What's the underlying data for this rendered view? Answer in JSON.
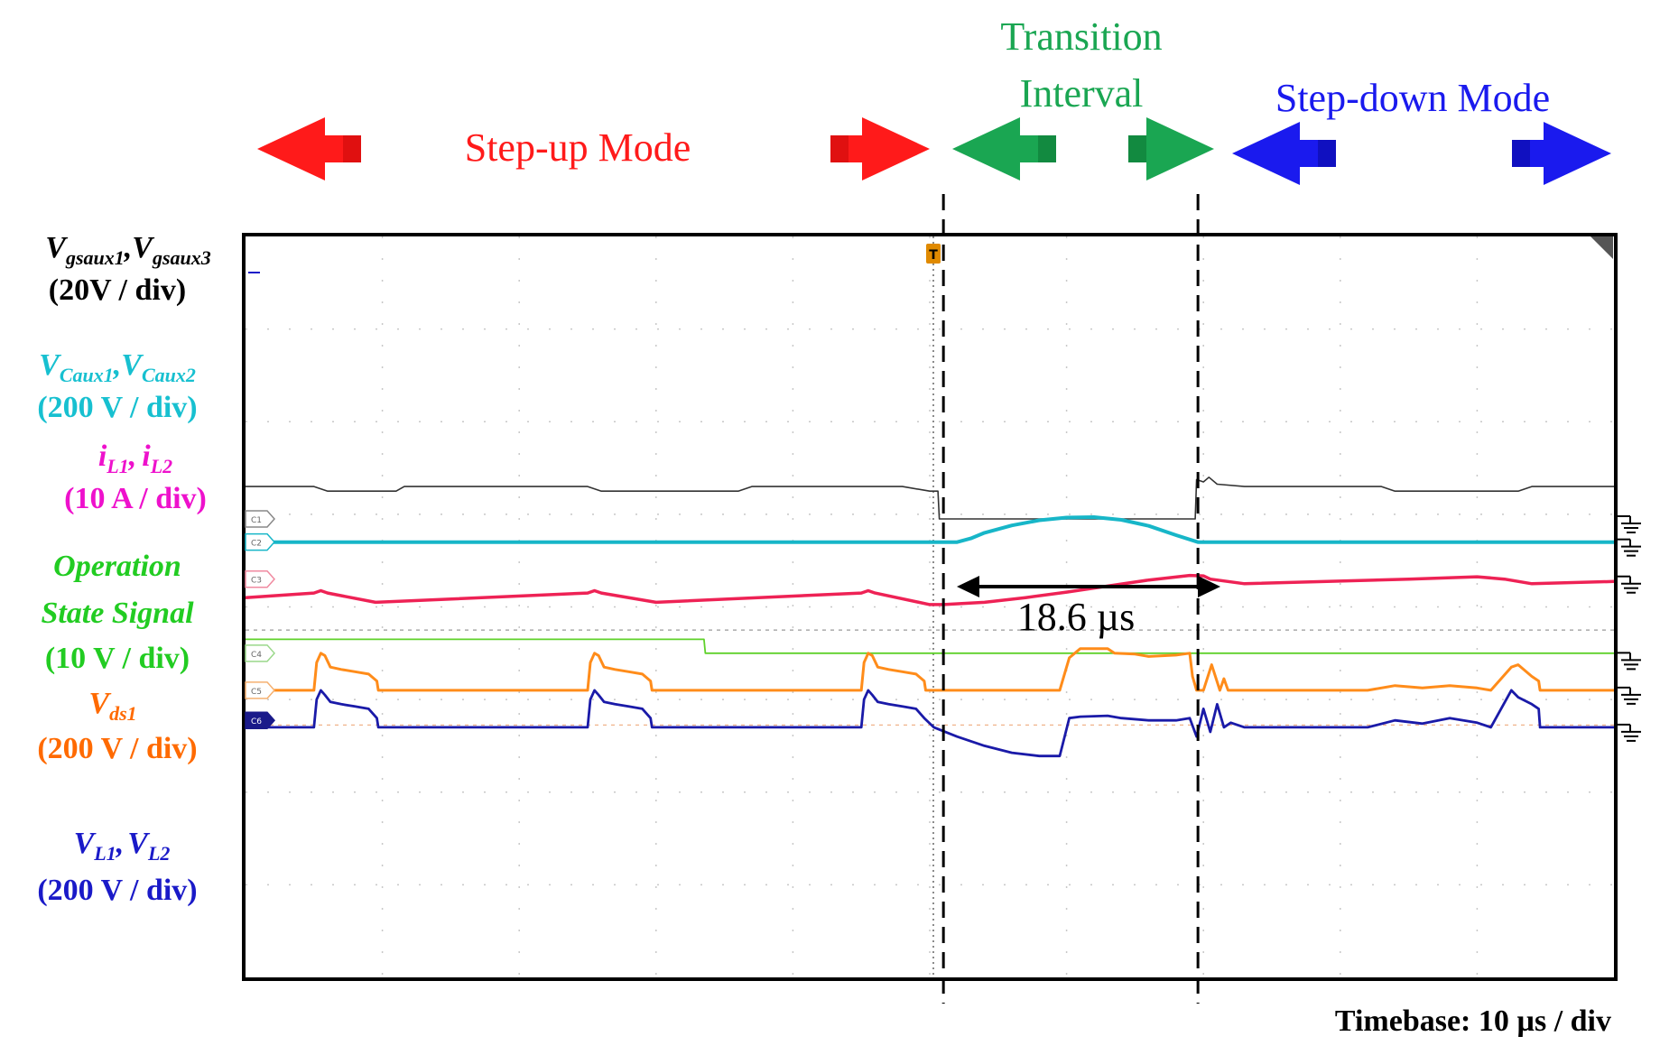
{
  "colors": {
    "stepup": "#ff1a1a",
    "transition": "#1aa652",
    "stepdown": "#1a1aee",
    "ch1": "#333333",
    "ch2": "#17b6c8",
    "ch3": "#ee2255",
    "ch_state": "#5fd12a",
    "ch5": "#ff8c1a",
    "ch6": "#1a1aa8",
    "label_ch2": "#17c0d0",
    "label_ch3": "#ee11cc",
    "label_state": "#22cc22",
    "label_ch5": "#ff6a00",
    "label_ch6": "#1a1ac8"
  },
  "modes": {
    "stepup": "Step-up Mode",
    "transition_line1": "Transition",
    "transition_line2": "Interval",
    "stepdown": "Step-down Mode"
  },
  "channel_labels": {
    "ch1": {
      "name_a_main": "V",
      "name_a_sub": "gsaux1",
      "separator": ",",
      "name_b_main": "V",
      "name_b_sub": "gsaux3",
      "scale": "(20V / div)"
    },
    "ch2": {
      "name_a_main": "V",
      "name_a_sub": "Caux1",
      "separator": ",",
      "name_b_main": "V",
      "name_b_sub": "Caux2",
      "scale": "(200 V / div)"
    },
    "ch3": {
      "name_a_main": "i",
      "name_a_sub": "L1",
      "separator": ",",
      "name_b_main": "i",
      "name_b_sub": "L2",
      "scale": "(10 A / div)"
    },
    "state": {
      "line1": "Operation",
      "line2": "State Signal",
      "scale": "(10 V / div)"
    },
    "ch5": {
      "name_main": "V",
      "name_sub": "ds1",
      "scale": "(200 V / div)"
    },
    "ch6": {
      "name_a_main": "V",
      "name_a_sub": "L1",
      "separator": ",",
      "name_b_main": "V",
      "name_b_sub": "L2",
      "scale": "(200 V / div)"
    }
  },
  "markers": [
    "C1",
    "C2",
    "C3",
    "C4",
    "C5",
    "C6"
  ],
  "trigger_marker": "T",
  "annotation": "18.6 µs",
  "timebase": "Timebase: 10 µs / div",
  "chart_data": {
    "type": "line",
    "title": "",
    "x_unit": "µs",
    "x_range": [
      0,
      100
    ],
    "x_divisions": 10,
    "y_divisions": 8,
    "vertical_markers_us": [
      51,
      69.6
    ],
    "transition_duration_us": 18.6,
    "series": [
      {
        "name": "Vgsaux1,Vgsaux3",
        "unit_div": "20V / div",
        "points": [
          [
            0,
            10.6
          ],
          [
            5,
            10.6
          ],
          [
            6,
            10.5
          ],
          [
            11,
            10.5
          ],
          [
            11.6,
            10.6
          ],
          [
            25,
            10.6
          ],
          [
            26,
            10.5
          ],
          [
            36,
            10.5
          ],
          [
            37,
            10.6
          ],
          [
            48,
            10.6
          ],
          [
            50,
            10.5
          ],
          [
            50.6,
            10.5
          ],
          [
            50.7,
            9.9
          ],
          [
            51,
            9.9
          ],
          [
            69.4,
            9.9
          ],
          [
            69.5,
            10.75
          ],
          [
            70,
            10.7
          ],
          [
            70.4,
            10.8
          ],
          [
            71,
            10.65
          ],
          [
            73,
            10.6
          ],
          [
            83,
            10.6
          ],
          [
            84,
            10.5
          ],
          [
            93,
            10.5
          ],
          [
            94,
            10.6
          ],
          [
            100,
            10.6
          ]
        ]
      },
      {
        "name": "VCaux1,VCaux2",
        "unit_div": "200 V / div",
        "points": [
          [
            0,
            9.4
          ],
          [
            51,
            9.4
          ],
          [
            52,
            9.4
          ],
          [
            53,
            9.48
          ],
          [
            54,
            9.6
          ],
          [
            56,
            9.76
          ],
          [
            58,
            9.87
          ],
          [
            60,
            9.93
          ],
          [
            62,
            9.94
          ],
          [
            64,
            9.88
          ],
          [
            66,
            9.75
          ],
          [
            68,
            9.55
          ],
          [
            69.6,
            9.4
          ],
          [
            71,
            9.4
          ],
          [
            100,
            9.4
          ]
        ]
      },
      {
        "name": "iL1,iL2",
        "unit_div": "10 A / div",
        "points": [
          [
            0,
            8.2
          ],
          [
            5,
            8.3
          ],
          [
            5.5,
            8.35
          ],
          [
            6,
            8.3
          ],
          [
            9.5,
            8.1
          ],
          [
            25,
            8.3
          ],
          [
            25.5,
            8.35
          ],
          [
            26,
            8.3
          ],
          [
            30,
            8.1
          ],
          [
            45,
            8.3
          ],
          [
            45.5,
            8.35
          ],
          [
            46,
            8.3
          ],
          [
            50,
            8.05
          ],
          [
            51,
            8.05
          ],
          [
            54,
            8.1
          ],
          [
            57,
            8.2
          ],
          [
            60,
            8.32
          ],
          [
            63,
            8.45
          ],
          [
            66,
            8.58
          ],
          [
            69,
            8.68
          ],
          [
            70,
            8.67
          ],
          [
            70.5,
            8.6
          ],
          [
            73,
            8.5
          ],
          [
            85,
            8.6
          ],
          [
            90,
            8.65
          ],
          [
            92,
            8.6
          ],
          [
            94,
            8.5
          ],
          [
            100,
            8.55
          ]
        ]
      },
      {
        "name": "Operation State Signal",
        "unit_div": "10 V / div",
        "points": [
          [
            0,
            7.3
          ],
          [
            33.5,
            7.3
          ],
          [
            33.6,
            7.0
          ],
          [
            100,
            7.0
          ]
        ]
      },
      {
        "name": "Vds1",
        "unit_div": "200 V / div",
        "points": [
          [
            0,
            6.2
          ],
          [
            5,
            6.2
          ],
          [
            5.2,
            6.8
          ],
          [
            5.5,
            7.0
          ],
          [
            5.8,
            6.95
          ],
          [
            6.2,
            6.7
          ],
          [
            7,
            6.65
          ],
          [
            8,
            6.6
          ],
          [
            9,
            6.55
          ],
          [
            9.6,
            6.4
          ],
          [
            9.7,
            6.2
          ],
          [
            25,
            6.2
          ],
          [
            25.2,
            6.8
          ],
          [
            25.5,
            7.0
          ],
          [
            25.8,
            6.95
          ],
          [
            26.2,
            6.7
          ],
          [
            27,
            6.65
          ],
          [
            28,
            6.6
          ],
          [
            29,
            6.55
          ],
          [
            29.6,
            6.4
          ],
          [
            29.7,
            6.2
          ],
          [
            45,
            6.2
          ],
          [
            45.2,
            6.8
          ],
          [
            45.5,
            7.0
          ],
          [
            45.8,
            6.95
          ],
          [
            46.2,
            6.7
          ],
          [
            47,
            6.65
          ],
          [
            48,
            6.6
          ],
          [
            49,
            6.55
          ],
          [
            49.6,
            6.4
          ],
          [
            49.7,
            6.2
          ],
          [
            59.5,
            6.2
          ],
          [
            60.2,
            6.9
          ],
          [
            61,
            7.1
          ],
          [
            63,
            7.1
          ],
          [
            63.5,
            7.0
          ],
          [
            65,
            6.98
          ],
          [
            66,
            6.93
          ],
          [
            68,
            6.96
          ],
          [
            69,
            7.0
          ],
          [
            69.2,
            6.5
          ],
          [
            69.5,
            6.2
          ],
          [
            70,
            6.2
          ],
          [
            70.6,
            6.75
          ],
          [
            71.2,
            6.2
          ],
          [
            71.5,
            6.45
          ],
          [
            71.8,
            6.2
          ],
          [
            82,
            6.2
          ],
          [
            84,
            6.3
          ],
          [
            86,
            6.25
          ],
          [
            88,
            6.3
          ],
          [
            90,
            6.25
          ],
          [
            91,
            6.2
          ],
          [
            92.5,
            6.7
          ],
          [
            93,
            6.75
          ],
          [
            94,
            6.5
          ],
          [
            94.5,
            6.4
          ],
          [
            94.6,
            6.2
          ],
          [
            100,
            6.2
          ]
        ]
      },
      {
        "name": "VL1,VL2",
        "unit_div": "200 V / div",
        "points": [
          [
            0,
            5.4
          ],
          [
            5,
            5.4
          ],
          [
            5.2,
            6.0
          ],
          [
            5.5,
            6.2
          ],
          [
            5.8,
            6.1
          ],
          [
            6.2,
            5.95
          ],
          [
            7,
            5.9
          ],
          [
            8,
            5.85
          ],
          [
            9,
            5.8
          ],
          [
            9.6,
            5.6
          ],
          [
            9.7,
            5.4
          ],
          [
            25,
            5.4
          ],
          [
            25.2,
            6.0
          ],
          [
            25.5,
            6.2
          ],
          [
            25.8,
            6.1
          ],
          [
            26.2,
            5.95
          ],
          [
            27,
            5.9
          ],
          [
            28,
            5.85
          ],
          [
            29,
            5.8
          ],
          [
            29.6,
            5.6
          ],
          [
            29.7,
            5.4
          ],
          [
            45,
            5.4
          ],
          [
            45.2,
            6.0
          ],
          [
            45.5,
            6.2
          ],
          [
            45.8,
            6.1
          ],
          [
            46.2,
            5.95
          ],
          [
            47,
            5.9
          ],
          [
            48,
            5.85
          ],
          [
            49,
            5.8
          ],
          [
            49.6,
            5.6
          ],
          [
            50.3,
            5.4
          ],
          [
            52,
            5.2
          ],
          [
            54,
            5.0
          ],
          [
            56,
            4.85
          ],
          [
            58,
            4.78
          ],
          [
            59.5,
            4.78
          ],
          [
            60.2,
            5.6
          ],
          [
            61,
            5.63
          ],
          [
            63,
            5.65
          ],
          [
            64,
            5.6
          ],
          [
            66,
            5.55
          ],
          [
            68,
            5.55
          ],
          [
            69,
            5.6
          ],
          [
            69.5,
            5.2
          ],
          [
            70,
            5.8
          ],
          [
            70.5,
            5.3
          ],
          [
            71,
            5.9
          ],
          [
            71.5,
            5.4
          ],
          [
            72,
            5.5
          ],
          [
            73,
            5.4
          ],
          [
            82,
            5.4
          ],
          [
            84,
            5.55
          ],
          [
            86,
            5.48
          ],
          [
            88,
            5.6
          ],
          [
            90,
            5.5
          ],
          [
            91,
            5.4
          ],
          [
            92.5,
            6.2
          ],
          [
            93,
            6.05
          ],
          [
            94,
            5.9
          ],
          [
            94.5,
            5.8
          ],
          [
            94.6,
            5.4
          ],
          [
            100,
            5.4
          ]
        ]
      }
    ]
  }
}
